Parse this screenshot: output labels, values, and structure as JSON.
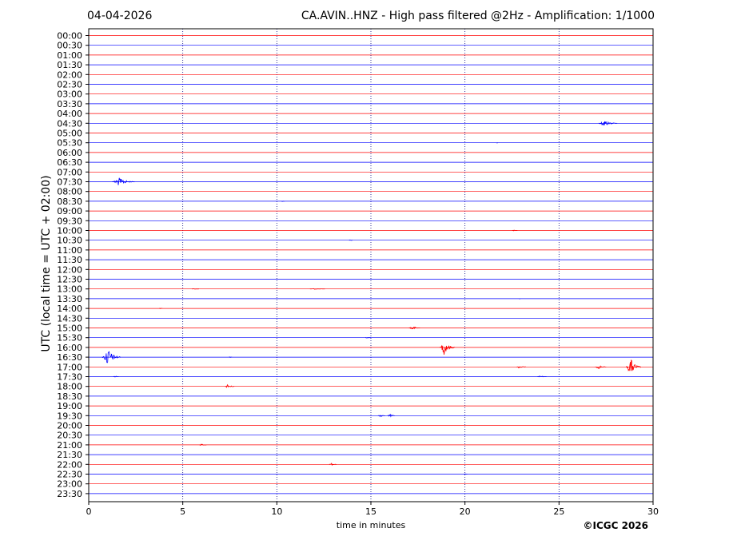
{
  "header": {
    "date": "04-04-2026",
    "title": "CA.AVIN..HNZ - High pass filtered @2Hz - Amplification: 1/1000"
  },
  "footer": {
    "copyright": "©ICGC 2026"
  },
  "colors": {
    "trace_a": "#ff0000",
    "trace_b": "#0000ff",
    "frame": "#000000",
    "grid": "#000080"
  },
  "chart_data": {
    "type": "line",
    "xlabel": "time in minutes",
    "ylabel": "UTC (local time = UTC + 02:00)",
    "xlim": [
      0,
      30
    ],
    "x_ticks": [
      0,
      5,
      10,
      15,
      20,
      25,
      30
    ],
    "grid": "vertical dotted lines at 5-minute intervals",
    "series_color_pattern": [
      "red",
      "blue"
    ],
    "rows": [
      {
        "label": "00:00",
        "color": "red"
      },
      {
        "label": "00:30",
        "color": "blue"
      },
      {
        "label": "01:00",
        "color": "red"
      },
      {
        "label": "01:30",
        "color": "blue"
      },
      {
        "label": "02:00",
        "color": "red"
      },
      {
        "label": "02:30",
        "color": "blue"
      },
      {
        "label": "03:00",
        "color": "red"
      },
      {
        "label": "03:30",
        "color": "blue"
      },
      {
        "label": "04:00",
        "color": "red"
      },
      {
        "label": "04:30",
        "color": "blue"
      },
      {
        "label": "05:00",
        "color": "red"
      },
      {
        "label": "05:30",
        "color": "blue"
      },
      {
        "label": "06:00",
        "color": "red"
      },
      {
        "label": "06:30",
        "color": "blue"
      },
      {
        "label": "07:00",
        "color": "red"
      },
      {
        "label": "07:30",
        "color": "blue"
      },
      {
        "label": "08:00",
        "color": "red"
      },
      {
        "label": "08:30",
        "color": "blue"
      },
      {
        "label": "09:00",
        "color": "red"
      },
      {
        "label": "09:30",
        "color": "blue"
      },
      {
        "label": "10:00",
        "color": "red"
      },
      {
        "label": "10:30",
        "color": "blue"
      },
      {
        "label": "11:00",
        "color": "red"
      },
      {
        "label": "11:30",
        "color": "blue"
      },
      {
        "label": "12:00",
        "color": "red"
      },
      {
        "label": "12:30",
        "color": "blue"
      },
      {
        "label": "13:00",
        "color": "red"
      },
      {
        "label": "13:30",
        "color": "blue"
      },
      {
        "label": "14:00",
        "color": "red"
      },
      {
        "label": "14:30",
        "color": "blue"
      },
      {
        "label": "15:00",
        "color": "red"
      },
      {
        "label": "15:30",
        "color": "blue"
      },
      {
        "label": "16:00",
        "color": "red"
      },
      {
        "label": "16:30",
        "color": "blue"
      },
      {
        "label": "17:00",
        "color": "red"
      },
      {
        "label": "17:30",
        "color": "blue"
      },
      {
        "label": "18:00",
        "color": "red"
      },
      {
        "label": "18:30",
        "color": "blue"
      },
      {
        "label": "19:00",
        "color": "red"
      },
      {
        "label": "19:30",
        "color": "blue"
      },
      {
        "label": "20:00",
        "color": "red"
      },
      {
        "label": "20:30",
        "color": "blue"
      },
      {
        "label": "21:00",
        "color": "red"
      },
      {
        "label": "21:30",
        "color": "blue"
      },
      {
        "label": "22:00",
        "color": "red"
      },
      {
        "label": "22:30",
        "color": "blue"
      },
      {
        "label": "23:00",
        "color": "red"
      },
      {
        "label": "23:30",
        "color": "blue"
      }
    ],
    "events": [
      {
        "row": "04:30",
        "minute": 27.4,
        "amplitude": 0.5,
        "duration": 1.0
      },
      {
        "row": "05:30",
        "minute": 21.7,
        "amplitude": 0.06,
        "duration": 0.1
      },
      {
        "row": "07:30",
        "minute": 1.6,
        "amplitude": 0.6,
        "duration": 1.2
      },
      {
        "row": "08:30",
        "minute": 10.3,
        "amplitude": 0.05,
        "duration": 0.2
      },
      {
        "row": "10:00",
        "minute": 22.6,
        "amplitude": 0.06,
        "duration": 0.3
      },
      {
        "row": "10:30",
        "minute": 13.9,
        "amplitude": 0.06,
        "duration": 0.2
      },
      {
        "row": "13:00",
        "minute": 5.6,
        "amplitude": 0.07,
        "duration": 0.4
      },
      {
        "row": "13:00",
        "minute": 12.0,
        "amplitude": 0.07,
        "duration": 0.8
      },
      {
        "row": "13:30",
        "minute": 22.9,
        "amplitude": 0.06,
        "duration": 0.1
      },
      {
        "row": "14:00",
        "minute": 3.8,
        "amplitude": 0.06,
        "duration": 0.2
      },
      {
        "row": "15:00",
        "minute": 17.2,
        "amplitude": 0.35,
        "duration": 0.6
      },
      {
        "row": "15:30",
        "minute": 14.8,
        "amplitude": 0.06,
        "duration": 0.3
      },
      {
        "row": "16:00",
        "minute": 18.9,
        "amplitude": 1.1,
        "duration": 0.8
      },
      {
        "row": "16:30",
        "minute": 1.0,
        "amplitude": 1.3,
        "duration": 1.0
      },
      {
        "row": "16:30",
        "minute": 7.5,
        "amplitude": 0.05,
        "duration": 0.2
      },
      {
        "row": "17:00",
        "minute": 22.9,
        "amplitude": 0.25,
        "duration": 0.5
      },
      {
        "row": "17:00",
        "minute": 27.1,
        "amplitude": 0.3,
        "duration": 0.6
      },
      {
        "row": "17:00",
        "minute": 28.8,
        "amplitude": 1.3,
        "duration": 0.8
      },
      {
        "row": "17:30",
        "minute": 1.4,
        "amplitude": 0.1,
        "duration": 0.3
      },
      {
        "row": "17:30",
        "minute": 24.0,
        "amplitude": 0.12,
        "duration": 0.5
      },
      {
        "row": "18:00",
        "minute": 7.4,
        "amplitude": 0.35,
        "duration": 0.5
      },
      {
        "row": "19:30",
        "minute": 15.5,
        "amplitude": 0.25,
        "duration": 0.4
      },
      {
        "row": "19:30",
        "minute": 16.0,
        "amplitude": 0.3,
        "duration": 0.4
      },
      {
        "row": "21:00",
        "minute": 6.0,
        "amplitude": 0.2,
        "duration": 0.4
      },
      {
        "row": "22:00",
        "minute": 12.9,
        "amplitude": 0.15,
        "duration": 0.4
      },
      {
        "row": "22:30",
        "minute": 20.0,
        "amplitude": 0.06,
        "duration": 0.2
      }
    ]
  }
}
